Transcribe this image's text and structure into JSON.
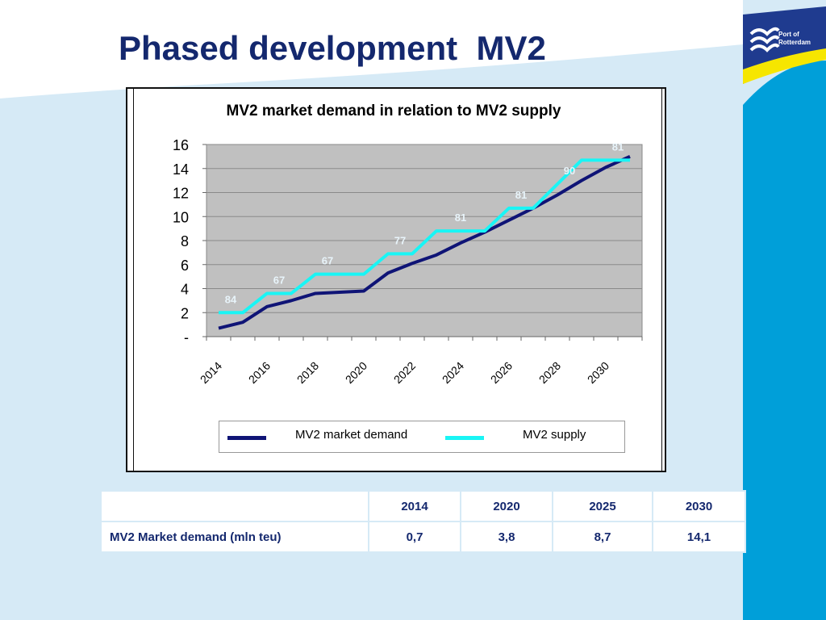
{
  "slide": {
    "title": "Phased development  MV2"
  },
  "logo": {
    "text_line1": "Port of",
    "text_line2": "Rotterdam"
  },
  "colors": {
    "title": "#14286e",
    "demand_series": "#0f1476",
    "supply_series": "#19f5f5",
    "plot_bg": "#c0c0c0",
    "label_color": "#e8f4fa",
    "logo_blue": "#1f3b8f",
    "logo_yellow": "#f6e600",
    "side_band": "#009fd9"
  },
  "chart_data": {
    "type": "line",
    "title": "MV2 market demand in relation to MV2 supply",
    "x_tick_labels": [
      "2014",
      "2016",
      "2018",
      "2020",
      "2022",
      "2024",
      "2026",
      "2028",
      "2030"
    ],
    "y_tick_labels": [
      "-",
      "2",
      "4",
      "6",
      "8",
      "10",
      "12",
      "14",
      "16"
    ],
    "ylim": [
      0,
      16
    ],
    "grid": "horizontal",
    "legend_position": "bottom",
    "series": [
      {
        "name": "MV2 market demand",
        "x": [
          2014,
          2015,
          2016,
          2017,
          2018,
          2019,
          2020,
          2021,
          2022,
          2023,
          2024,
          2025,
          2026,
          2027,
          2028,
          2029,
          2030,
          2031
        ],
        "values": [
          0.7,
          1.2,
          2.5,
          3.0,
          3.6,
          3.7,
          3.8,
          5.3,
          6.1,
          6.8,
          7.8,
          8.7,
          9.7,
          10.7,
          11.8,
          13.0,
          14.1,
          15.0
        ]
      },
      {
        "name": "MV2 supply",
        "x": [
          2014,
          2015,
          2016,
          2017,
          2018,
          2019,
          2020,
          2021,
          2022,
          2023,
          2024,
          2025,
          2026,
          2027,
          2028,
          2029,
          2030,
          2031
        ],
        "values": [
          2.0,
          2.0,
          3.6,
          3.6,
          5.2,
          5.2,
          5.2,
          6.9,
          6.9,
          8.8,
          8.8,
          8.8,
          10.7,
          10.7,
          12.7,
          14.7,
          14.7,
          14.7
        ]
      }
    ],
    "annotations": [
      {
        "x": 2014.5,
        "y": 2.0,
        "text": "84"
      },
      {
        "x": 2016.5,
        "y": 3.6,
        "text": "67"
      },
      {
        "x": 2018.5,
        "y": 5.2,
        "text": "67"
      },
      {
        "x": 2021.5,
        "y": 6.9,
        "text": "77"
      },
      {
        "x": 2024,
        "y": 8.8,
        "text": "81"
      },
      {
        "x": 2026.5,
        "y": 10.7,
        "text": "81"
      },
      {
        "x": 2028.5,
        "y": 12.7,
        "text": "90"
      },
      {
        "x": 2030.5,
        "y": 14.7,
        "text": "81"
      }
    ]
  },
  "table": {
    "headers": [
      "",
      "2014",
      "2020",
      "2025",
      "2030"
    ],
    "rows": [
      {
        "label": "MV2 Market demand (mln teu)",
        "values": [
          "0,7",
          "3,8",
          "8,7",
          "14,1"
        ]
      }
    ]
  }
}
